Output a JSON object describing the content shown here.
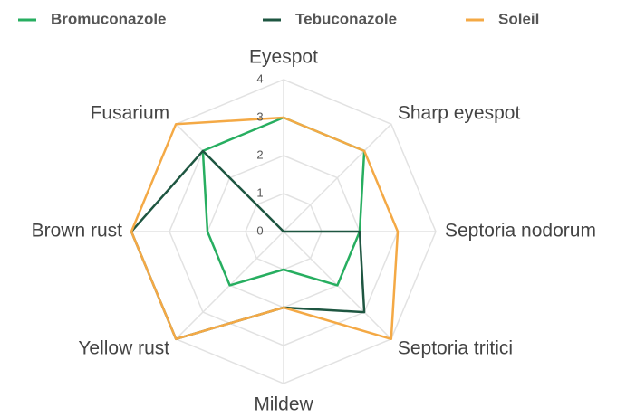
{
  "chart_data": {
    "type": "radar",
    "categories": [
      "Eyespot",
      "Sharp eyespot",
      "Septoria nodorum",
      "Septoria tritici",
      "Mildew",
      "Yellow rust",
      "Brown rust",
      "Fusarium"
    ],
    "series": [
      {
        "name": "Bromuconazole",
        "color": "#27ae60",
        "values": [
          3,
          3,
          2,
          2,
          1,
          2,
          2,
          3
        ]
      },
      {
        "name": "Tebuconazole",
        "color": "#1e5641",
        "values": [
          0,
          0,
          2,
          3,
          2,
          4,
          4,
          3
        ]
      },
      {
        "name": "Soleil",
        "color": "#f4a945",
        "values": [
          3,
          3,
          3,
          4,
          2,
          4,
          4,
          4
        ]
      }
    ],
    "ylim": [
      0,
      4
    ],
    "yticks": [
      0,
      1,
      2,
      3,
      4
    ],
    "grid": true,
    "legend": "top"
  }
}
